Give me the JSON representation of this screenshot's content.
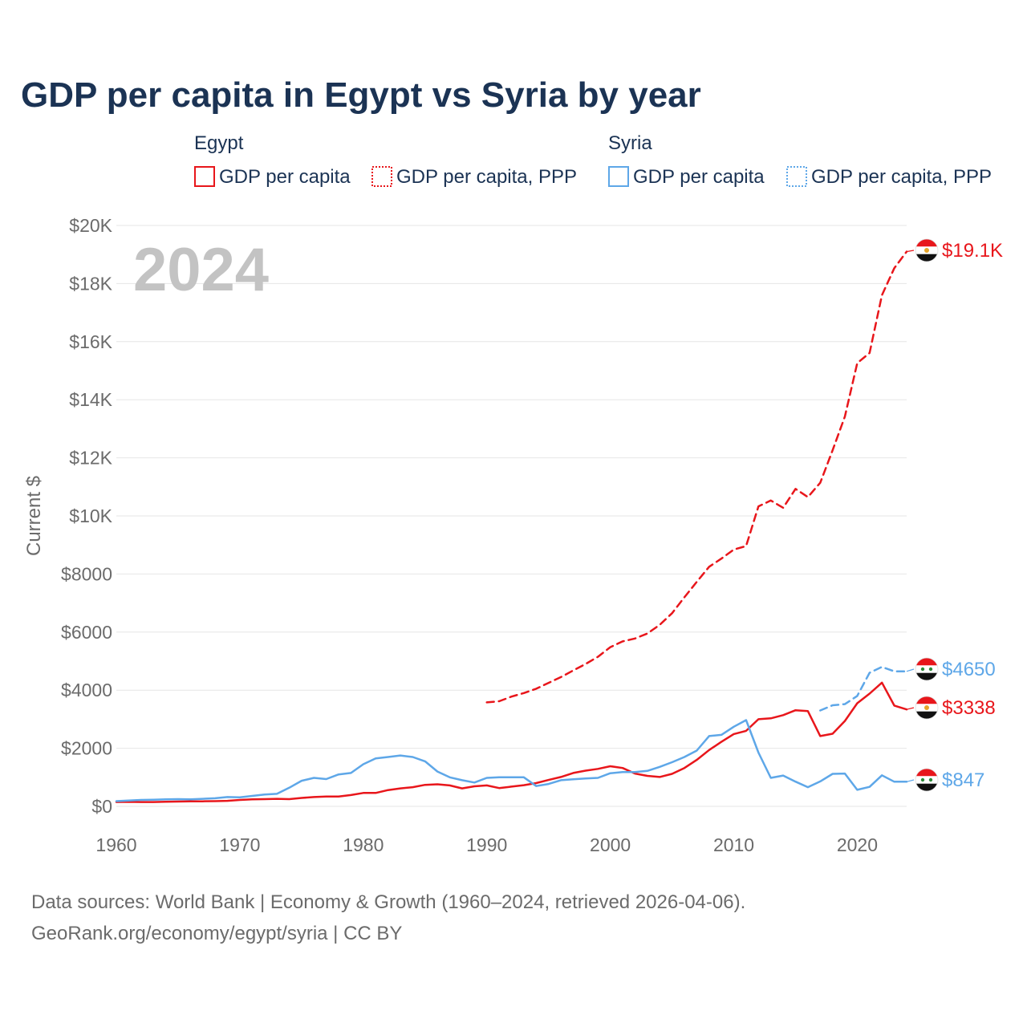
{
  "title": "GDP per capita in Egypt vs Syria by year",
  "year_label": "2024",
  "footer": {
    "line1": "Data sources: World Bank | Economy & Growth (1960–2024, retrieved 2026-04-06).",
    "line2": "GeoRank.org/economy/egypt/syria | CC BY"
  },
  "legend": {
    "egypt": {
      "title": "Egypt",
      "gdp": "GDP per capita",
      "ppp": "GDP per capita, PPP"
    },
    "syria": {
      "title": "Syria",
      "gdp": "GDP per capita",
      "ppp": "GDP per capita, PPP"
    }
  },
  "colors": {
    "egypt": "#e8161b",
    "syria": "#5ea7e8",
    "grid": "#e6e6e6",
    "text": "#1b3354",
    "muted": "#6b6b6b"
  },
  "icons": {
    "egypt_flag": "egypt-flag-icon",
    "syria_flag": "syria-flag-icon"
  },
  "chart_data": {
    "type": "line",
    "title": "GDP per capita in Egypt vs Syria by year",
    "xlabel": "",
    "ylabel": "Current $",
    "xlim": [
      1960,
      2024
    ],
    "ylim": [
      0,
      20000
    ],
    "x_ticks": [
      1960,
      1970,
      1980,
      1990,
      2000,
      2010,
      2020
    ],
    "y_ticks": [
      0,
      2000,
      4000,
      6000,
      8000,
      10000,
      12000,
      14000,
      16000,
      18000,
      20000
    ],
    "y_tick_labels": [
      "$0",
      "$2000",
      "$4000",
      "$6000",
      "$8000",
      "$10K",
      "$12K",
      "$14K",
      "$16K",
      "$18K",
      "$20K"
    ],
    "grid": true,
    "end_labels": {
      "egypt_gdp": "$3338",
      "egypt_ppp": "$19.1K",
      "syria_gdp": "$847",
      "syria_ppp": "$4650"
    },
    "series": [
      {
        "name": "Egypt GDP per capita",
        "key": "egypt_gdp",
        "country": "egypt",
        "dashed": false,
        "start": 1960,
        "values": [
          150,
          155,
          150,
          150,
          160,
          165,
          170,
          175,
          180,
          190,
          220,
          240,
          250,
          260,
          250,
          290,
          320,
          340,
          340,
          390,
          460,
          460,
          560,
          620,
          660,
          740,
          760,
          720,
          620,
          690,
          720,
          630,
          680,
          730,
          800,
          910,
          1010,
          1150,
          1230,
          1290,
          1380,
          1320,
          1130,
          1050,
          1010,
          1120,
          1320,
          1600,
          1940,
          2220,
          2490,
          2600,
          3000,
          3030,
          3140,
          3310,
          3280,
          2420,
          2500,
          2940,
          3550,
          3880,
          4260,
          3470,
          3338
        ]
      },
      {
        "name": "Egypt GDP per capita, PPP",
        "key": "egypt_ppp",
        "country": "egypt",
        "dashed": true,
        "start": 1990,
        "values": [
          3580,
          3620,
          3780,
          3900,
          4050,
          4250,
          4450,
          4680,
          4900,
          5150,
          5480,
          5680,
          5780,
          5950,
          6250,
          6650,
          7200,
          7730,
          8250,
          8530,
          8840,
          8960,
          10330,
          10530,
          10280,
          10930,
          10650,
          11140,
          12260,
          13420,
          15260,
          15610,
          17600,
          18530,
          19100
        ]
      },
      {
        "name": "Syria GDP per capita",
        "key": "syria_gdp",
        "country": "syria",
        "dashed": false,
        "start": 1960,
        "values": [
          180,
          200,
          220,
          230,
          240,
          250,
          240,
          260,
          280,
          320,
          310,
          360,
          410,
          430,
          640,
          880,
          980,
          940,
          1100,
          1150,
          1450,
          1650,
          1700,
          1750,
          1700,
          1550,
          1200,
          1000,
          900,
          820,
          980,
          1000,
          1000,
          1000,
          700,
          770,
          900,
          930,
          960,
          980,
          1140,
          1180,
          1180,
          1220,
          1360,
          1520,
          1700,
          1920,
          2420,
          2460,
          2740,
          2970,
          1850,
          980,
          1060,
          850,
          660,
          860,
          1120,
          1130,
          570,
          670,
          1070,
          847,
          847
        ]
      },
      {
        "name": "Syria GDP per capita, PPP",
        "key": "syria_ppp",
        "country": "syria",
        "dashed": true,
        "start": 2017,
        "values": [
          3300,
          3480,
          3520,
          3800,
          4600,
          4800,
          4650,
          4650
        ]
      }
    ]
  }
}
